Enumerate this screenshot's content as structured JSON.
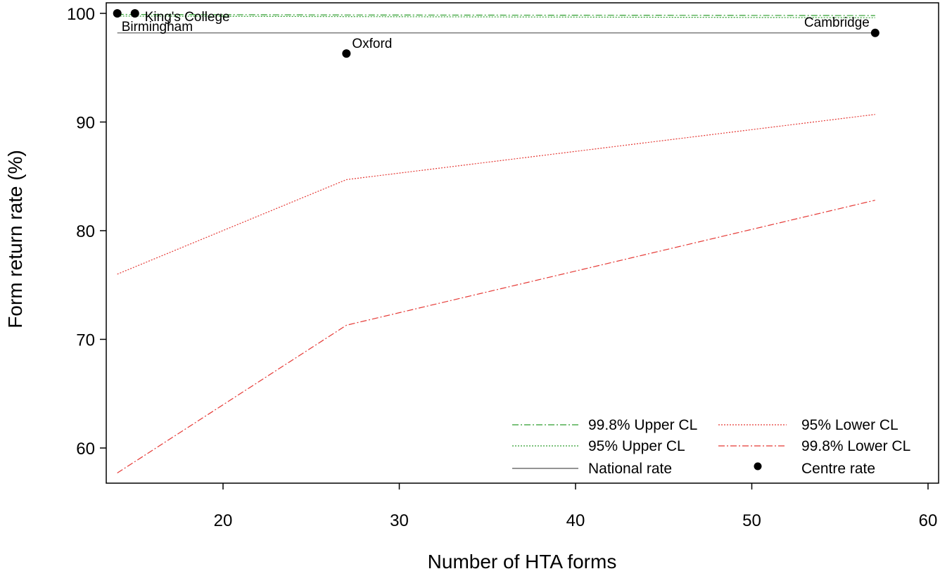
{
  "chart_data": {
    "type": "scatter",
    "title": "",
    "xlabel": "Number of HTA forms",
    "ylabel": "Form return rate (%)",
    "xlim": [
      13.5,
      60
    ],
    "ylim": [
      56,
      101
    ],
    "x_ticks": [
      20,
      30,
      40,
      50,
      60
    ],
    "y_ticks": [
      60,
      70,
      80,
      90,
      100
    ],
    "grid": false,
    "legend_position": "bottom-right",
    "centres": [
      {
        "name": "Birmingham",
        "x": 14,
        "y": 100
      },
      {
        "name": "King's College",
        "x": 15,
        "y": 100
      },
      {
        "name": "Oxford",
        "x": 27,
        "y": 96.3
      },
      {
        "name": "Cambridge",
        "x": 57,
        "y": 98.2
      }
    ],
    "series": [
      {
        "name": "99.8% Upper CL",
        "color": "#2e9e2e",
        "dash": "dashdot",
        "x": [
          14,
          27,
          57
        ],
        "y": [
          99.9,
          99.85,
          99.8
        ]
      },
      {
        "name": "95% Upper CL",
        "color": "#2e9e2e",
        "dash": "dotted",
        "x": [
          14,
          27,
          57
        ],
        "y": [
          99.75,
          99.7,
          99.6
        ]
      },
      {
        "name": "National rate",
        "color": "#555555",
        "dash": "solid",
        "x": [
          14,
          57
        ],
        "y": [
          98.2,
          98.2
        ]
      },
      {
        "name": "95% Lower CL",
        "color": "#e53935",
        "dash": "dotted",
        "x": [
          14,
          27,
          57
        ],
        "y": [
          76.0,
          84.7,
          90.7
        ]
      },
      {
        "name": "99.8% Lower CL",
        "color": "#e53935",
        "dash": "dashdot",
        "x": [
          14,
          27,
          57
        ],
        "y": [
          57.7,
          71.3,
          82.8
        ]
      }
    ],
    "legend": [
      {
        "label": "99.8% Upper CL",
        "kind": "line",
        "series": 0
      },
      {
        "label": "95% Lower CL",
        "kind": "line",
        "series": 3
      },
      {
        "label": "95% Upper CL",
        "kind": "line",
        "series": 1
      },
      {
        "label": "99.8% Lower CL",
        "kind": "line",
        "series": 4
      },
      {
        "label": "National rate",
        "kind": "line",
        "series": 2
      },
      {
        "label": "Centre rate",
        "kind": "point"
      }
    ]
  }
}
